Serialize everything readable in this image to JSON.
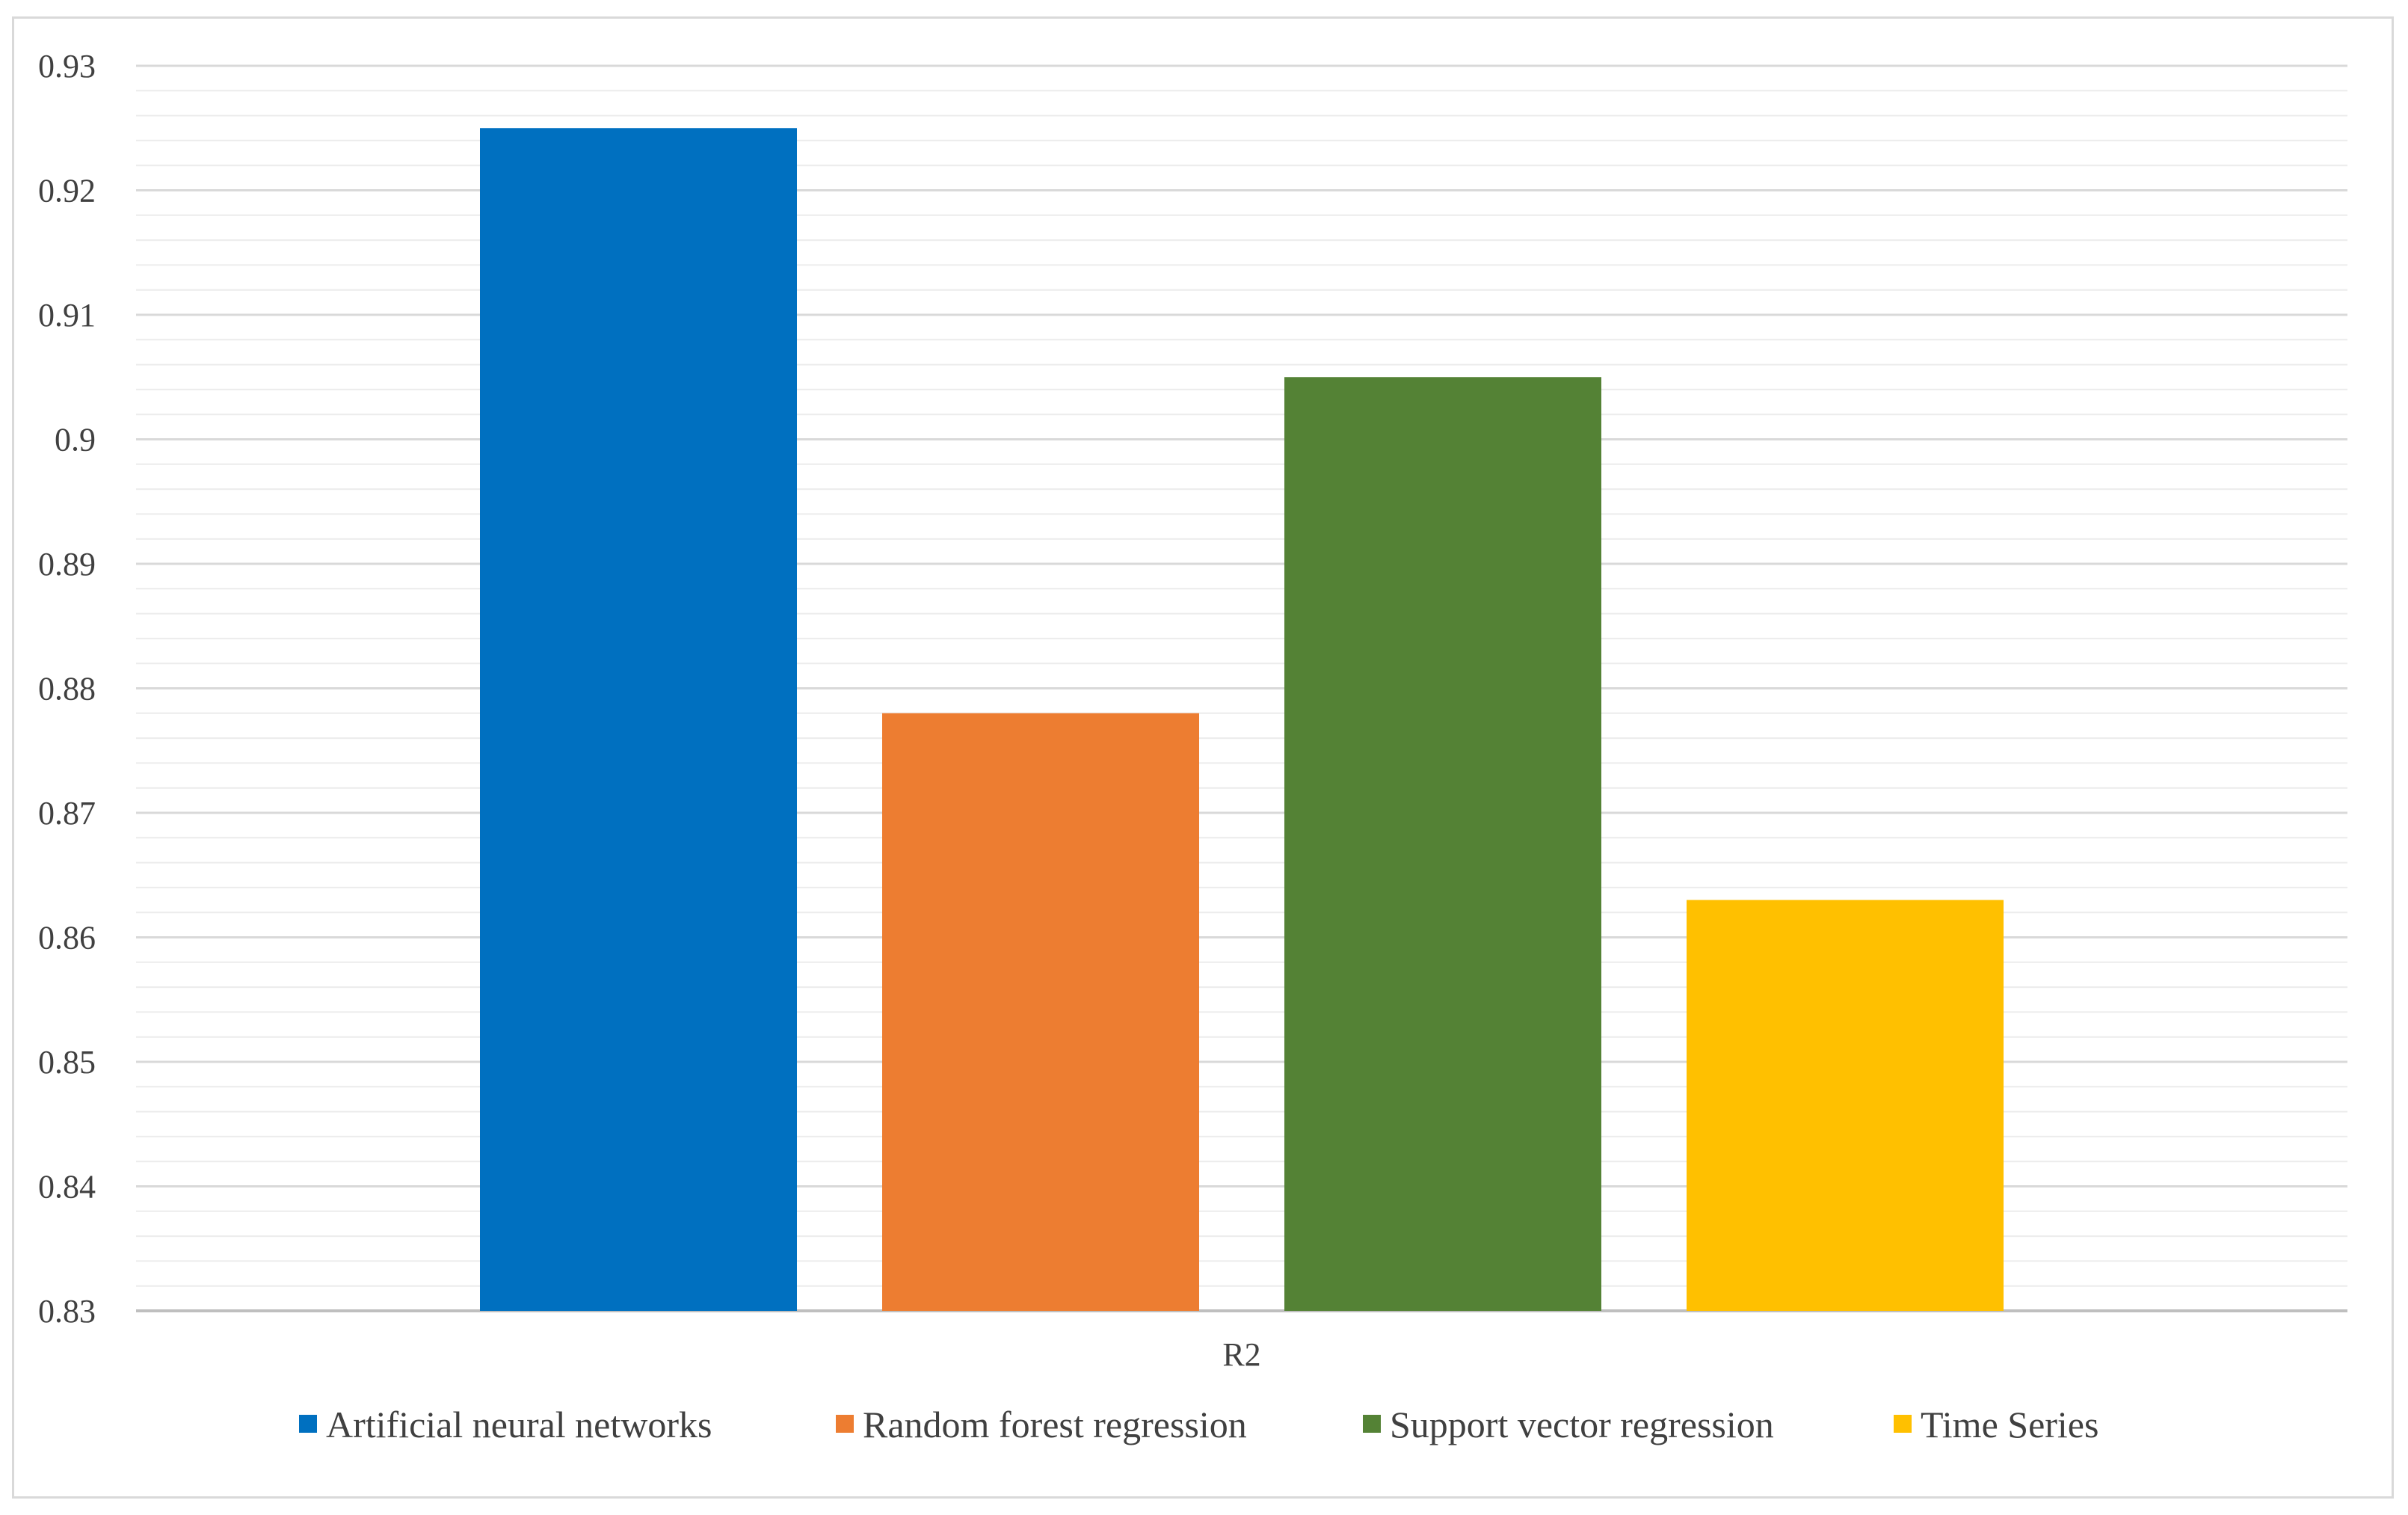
{
  "chart_data": {
    "type": "bar",
    "title": "",
    "xlabel": "",
    "ylabel": "",
    "categories": [
      "R2"
    ],
    "series": [
      {
        "name": "Artificial neural networks",
        "values": [
          0.925
        ],
        "color": "#0070C0"
      },
      {
        "name": "Random forest regression",
        "values": [
          0.878
        ],
        "color": "#ED7D31"
      },
      {
        "name": "Support vector regression",
        "values": [
          0.905
        ],
        "color": "#548235"
      },
      {
        "name": "Time Series",
        "values": [
          0.863
        ],
        "color": "#FFC000"
      }
    ],
    "ylim": [
      0.83,
      0.93
    ],
    "yticks": [
      "0.83",
      "0.84",
      "0.85",
      "0.86",
      "0.87",
      "0.88",
      "0.89",
      "0.9",
      "0.91",
      "0.92",
      "0.93"
    ],
    "grid": true,
    "minor_grid": true,
    "legend_position": "bottom"
  }
}
